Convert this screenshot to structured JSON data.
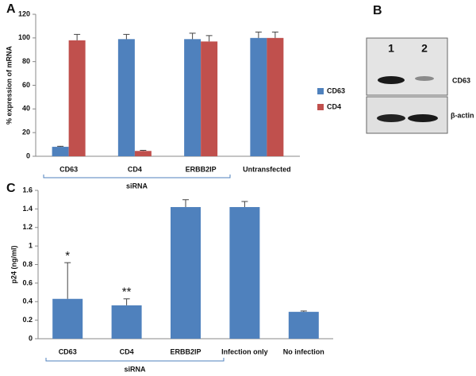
{
  "chart_data": [
    {
      "type": "bar",
      "panel_label": "A",
      "y_label": "% expression of mRNA",
      "categories": [
        "CD63",
        "CD4",
        "ERBB2IP",
        "Untransfected"
      ],
      "series": [
        {
          "name": "CD63",
          "color": "#4f81bd",
          "values": [
            8,
            99,
            99,
            100
          ],
          "errors": [
            0.5,
            4,
            5,
            5
          ]
        },
        {
          "name": "CD4",
          "color": "#c0504d",
          "values": [
            98,
            4.5,
            97,
            100
          ],
          "errors": [
            5,
            0.5,
            5,
            5
          ]
        }
      ],
      "ylim": [
        0,
        120
      ],
      "yticks": [
        0,
        20,
        40,
        60,
        80,
        100,
        120
      ],
      "legend": "right",
      "bracket_label": "siRNA"
    },
    {
      "type": "bar",
      "panel_label": "C",
      "y_label": "p24 (ng/ml)",
      "categories": [
        "CD63",
        "CD4",
        "ERBB2IP",
        "Infection only",
        "No infection"
      ],
      "values": [
        0.43,
        0.36,
        1.42,
        1.42,
        0.29
      ],
      "errors": [
        0.39,
        0.07,
        0.08,
        0.06,
        0.01
      ],
      "color": "#4f81bd",
      "annotations": [
        "*",
        "**",
        null,
        null,
        null
      ],
      "ylim": [
        0,
        1.6
      ],
      "yticks": [
        0,
        0.2,
        0.4,
        0.6,
        0.8,
        1,
        1.2,
        1.4,
        1.6
      ],
      "bracket_label": "siRNA"
    }
  ],
  "panel_b": {
    "panel_label": "B",
    "lanes": [
      "1",
      "2"
    ],
    "rows": [
      "CD63",
      "β-actin"
    ]
  }
}
